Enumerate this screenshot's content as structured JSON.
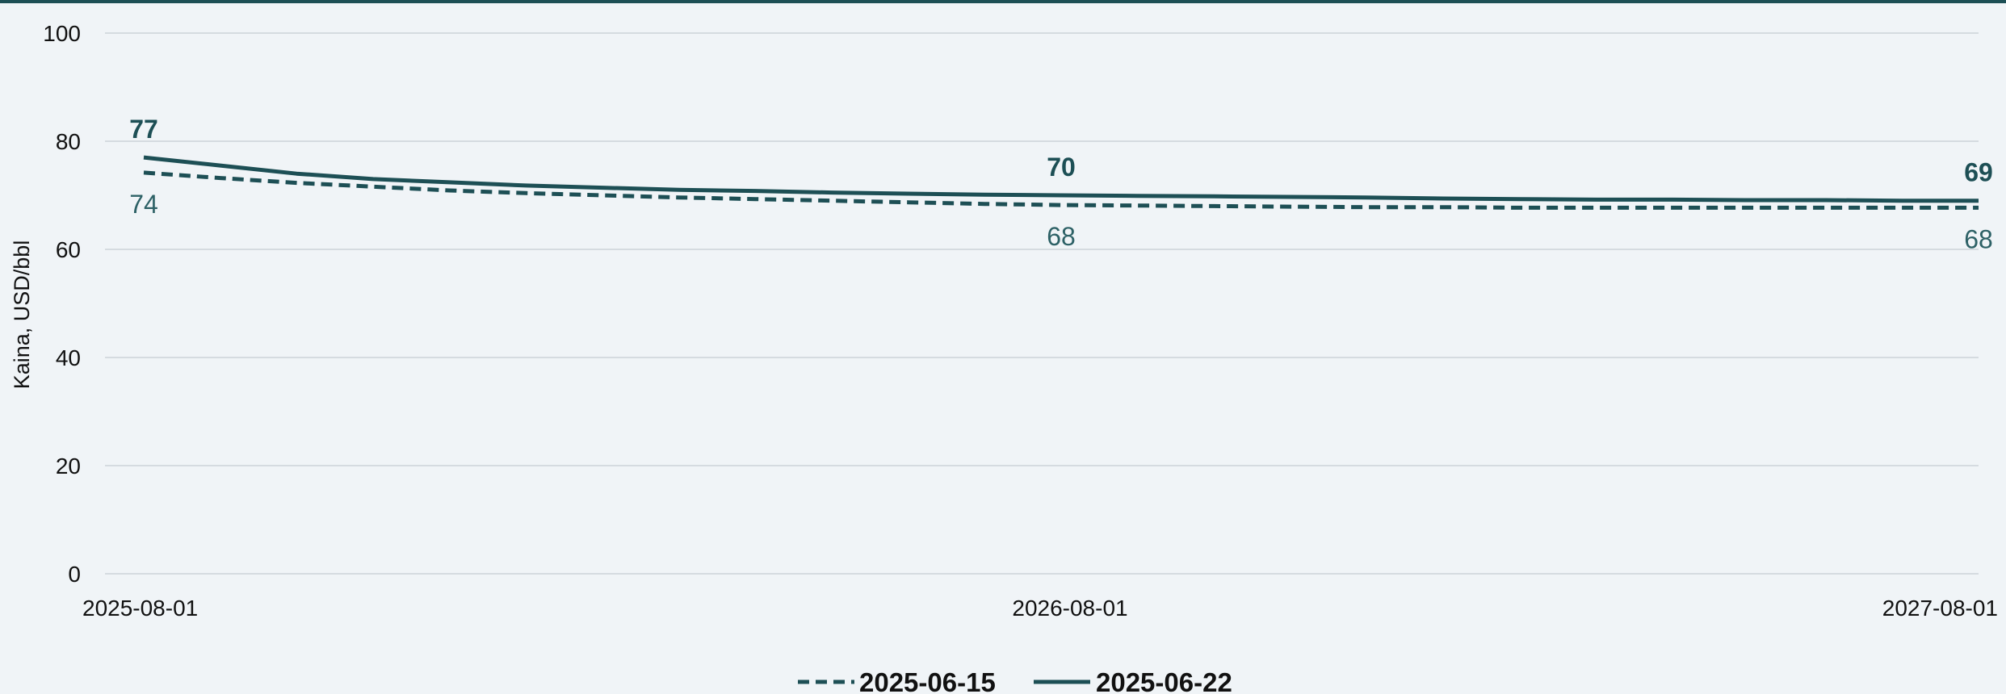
{
  "chart_data": {
    "type": "line",
    "title": "",
    "ylabel": "Kaina, USD/bbl",
    "xlabel": "",
    "ylim": [
      0,
      100
    ],
    "y_ticks": [
      "0",
      "20",
      "40",
      "60",
      "80",
      "100"
    ],
    "x_ticks": [
      "2025-08-01",
      "2026-08-01",
      "2027-08-01"
    ],
    "grid": true,
    "legend_position": "bottom-center",
    "x_months": 24,
    "series": [
      {
        "name": "2025-06-15",
        "style": "dashed",
        "color": "#1d4f55",
        "values": [
          74.2,
          73.2,
          72.3,
          71.6,
          70.9,
          70.4,
          70.0,
          69.6,
          69.3,
          69.0,
          68.7,
          68.4,
          68.2,
          68.1,
          68.0,
          67.9,
          67.8,
          67.8,
          67.7,
          67.7,
          67.7,
          67.7,
          67.7,
          67.7,
          67.7
        ],
        "labels": [
          {
            "index": 0,
            "text": "74",
            "position": "below"
          },
          {
            "index": 12,
            "text": "68",
            "position": "below"
          },
          {
            "index": 24,
            "text": "68",
            "position": "below"
          }
        ]
      },
      {
        "name": "2025-06-22",
        "style": "solid",
        "color": "#1d4f55",
        "values": [
          77.0,
          75.5,
          74.0,
          73.0,
          72.4,
          71.8,
          71.4,
          71.0,
          70.8,
          70.5,
          70.3,
          70.1,
          70.0,
          69.9,
          69.8,
          69.7,
          69.6,
          69.4,
          69.3,
          69.2,
          69.2,
          69.1,
          69.1,
          69.0,
          69.0
        ],
        "labels": [
          {
            "index": 0,
            "text": "77",
            "position": "above"
          },
          {
            "index": 12,
            "text": "70",
            "position": "above"
          },
          {
            "index": 24,
            "text": "69",
            "position": "above"
          }
        ]
      }
    ]
  }
}
